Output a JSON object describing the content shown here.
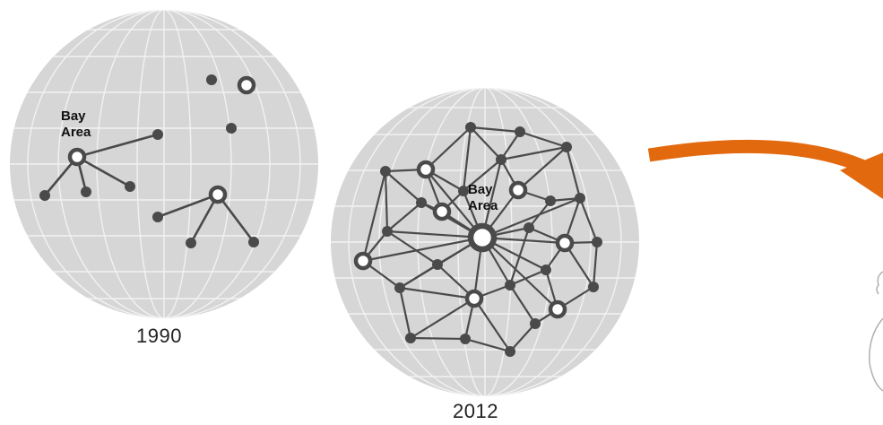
{
  "globes": [
    {
      "id": "globe-1990",
      "year": "1990",
      "hub_label_line1": "Bay",
      "hub_label_line2": "Area"
    },
    {
      "id": "globe-2012",
      "year": "2012",
      "hub_label_line1": "Bay",
      "hub_label_line2": "Area"
    }
  ],
  "colors": {
    "globe_fill": "#d6d6d6",
    "grid_line": "#f2f2f2",
    "network": "#4a4a4a",
    "arrow": "#e3690f"
  },
  "icons": {
    "transition_arrow": "curved-arrow-icon",
    "edge_figure": "partial-figure-icon"
  }
}
